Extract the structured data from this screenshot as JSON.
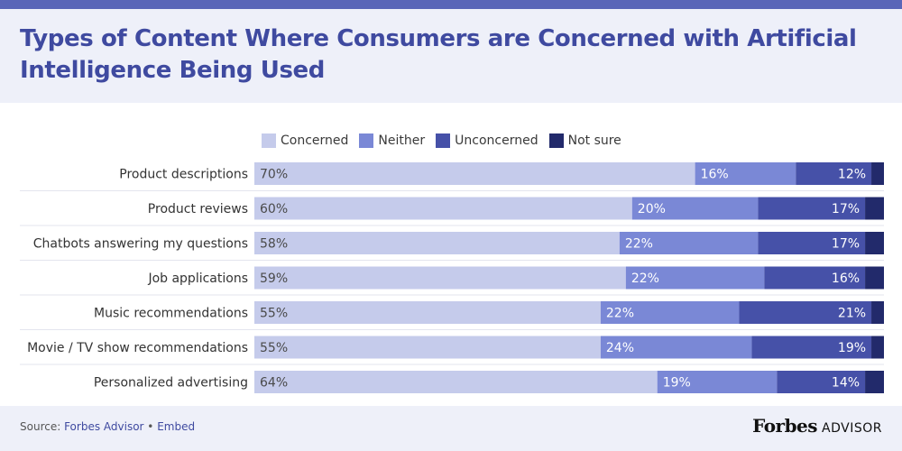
{
  "header": {
    "title": "Types of Content Where Consumers are Concerned with Artificial Intelligence Being Used"
  },
  "colors": {
    "Concerned": "#c5cbeb",
    "Neither": "#7a88d6",
    "Unconcerned": "#4651a8",
    "Not sure": "#222a6b"
  },
  "chart_data": {
    "type": "bar",
    "orientation": "horizontal",
    "stacked": true,
    "title": "Types of Content Where Consumers are Concerned with Artificial Intelligence Being Used",
    "legend_placement": "top",
    "xlim": [
      0,
      100
    ],
    "grid": false,
    "categories": [
      "Product descriptions",
      "Product reviews",
      "Chatbots answering my questions",
      "Job applications",
      "Music recommendations",
      "Movie / TV show recommendations",
      "Personalized advertising"
    ],
    "series": [
      {
        "name": "Concerned",
        "values": [
          70,
          60,
          58,
          59,
          55,
          55,
          64
        ],
        "labels": [
          "70%",
          "60%",
          "58%",
          "59%",
          "55%",
          "55%",
          "64%"
        ]
      },
      {
        "name": "Neither",
        "values": [
          16,
          20,
          22,
          22,
          22,
          24,
          19
        ],
        "labels": [
          "16%",
          "20%",
          "22%",
          "22%",
          "22%",
          "24%",
          "19%"
        ]
      },
      {
        "name": "Unconcerned",
        "values": [
          12,
          17,
          17,
          16,
          21,
          19,
          14
        ],
        "labels": [
          "12%",
          "17%",
          "17%",
          "16%",
          "21%",
          "19%",
          "14%"
        ]
      },
      {
        "name": "Not sure",
        "values": [
          2,
          3,
          3,
          3,
          2,
          2,
          3
        ],
        "labels": [
          "",
          "",
          "",
          "",
          "",
          "",
          ""
        ]
      }
    ]
  },
  "footer": {
    "source_prefix": "Source: ",
    "source_link": "Forbes Advisor",
    "separator": " • ",
    "embed_link": "Embed"
  },
  "logo": {
    "brand": "Forbes",
    "product": "ADVISOR"
  }
}
